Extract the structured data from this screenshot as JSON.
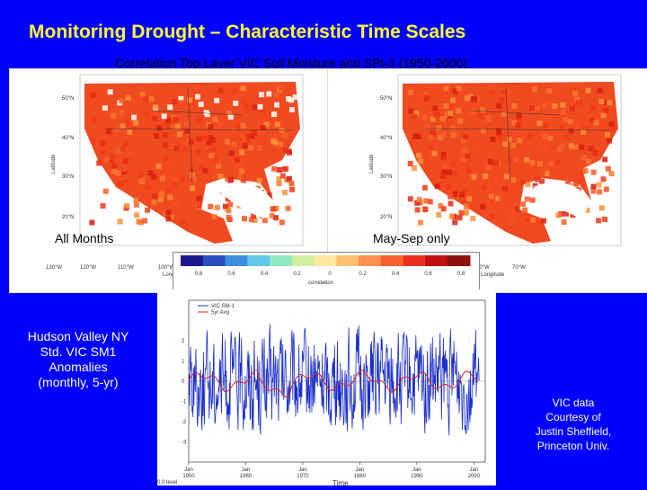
{
  "slide": {
    "title": "Monitoring Drought – Characteristic Time Scales",
    "subtitle": "Correlation Top Layer VIC Soil Moisture and SPI-3 (1950-2000)"
  },
  "maps": [
    {
      "label": "All Months",
      "ylabel": "Latitude",
      "xlabel": "Longitude",
      "lat_ticks": [
        "50°N",
        "40°N",
        "30°N",
        "20°N"
      ],
      "lon_ticks": [
        "130°W",
        "120°W",
        "110°W",
        "100°W"
      ]
    },
    {
      "label": "May-Sep only",
      "ylabel": "Latitude",
      "xlabel": "Longitude",
      "lat_ticks": [
        "50°N",
        "40°N",
        "30°N",
        "20°N"
      ],
      "lon_ticks": [
        "80°W",
        "70°W"
      ]
    }
  ],
  "colorbar": {
    "label": "correlation",
    "ticks": [
      "0.8",
      "0.6",
      "0.4",
      "0.2",
      "0",
      "0.2",
      "0.4",
      "0.6",
      "0.8"
    ],
    "colors": [
      "#1a1a8c",
      "#2b4fc0",
      "#3f8fe0",
      "#5fc8e8",
      "#8fe8c0",
      "#cfeea0",
      "#ffe8a0",
      "#ffc070",
      "#ff9050",
      "#f86030",
      "#e83020",
      "#c01010",
      "#901010"
    ]
  },
  "left_caption": {
    "lines": [
      "Hudson Valley NY",
      "Std. VIC SM1",
      "Anomalies",
      "(monthly, 5-yr)"
    ]
  },
  "credit": {
    "lines": [
      "VIC data",
      "Courtesy of",
      "Justin Sheffield,",
      "Princeton Univ."
    ]
  },
  "chart_data": {
    "type": "line",
    "xlabel": "Time",
    "x_ticks": [
      {
        "top": "Jan",
        "bottom": "1950"
      },
      {
        "top": "Jan",
        "bottom": "1960"
      },
      {
        "top": "Jan",
        "bottom": "1970"
      },
      {
        "top": "Jan",
        "bottom": "1980"
      },
      {
        "top": "Jan",
        "bottom": "1990"
      },
      {
        "top": "Jan",
        "bottom": "2000"
      }
    ],
    "xlim": [
      1950,
      2002
    ],
    "ylim": [
      -4,
      4
    ],
    "y_ticks": [
      "2",
      "1",
      "0",
      "-1",
      "-2",
      "-3"
    ],
    "legend": [
      "VIC SM-1",
      "5yr Avg"
    ],
    "series_colors": [
      "#1a2fcc",
      "#e02020"
    ],
    "footer": "0.0 level"
  }
}
